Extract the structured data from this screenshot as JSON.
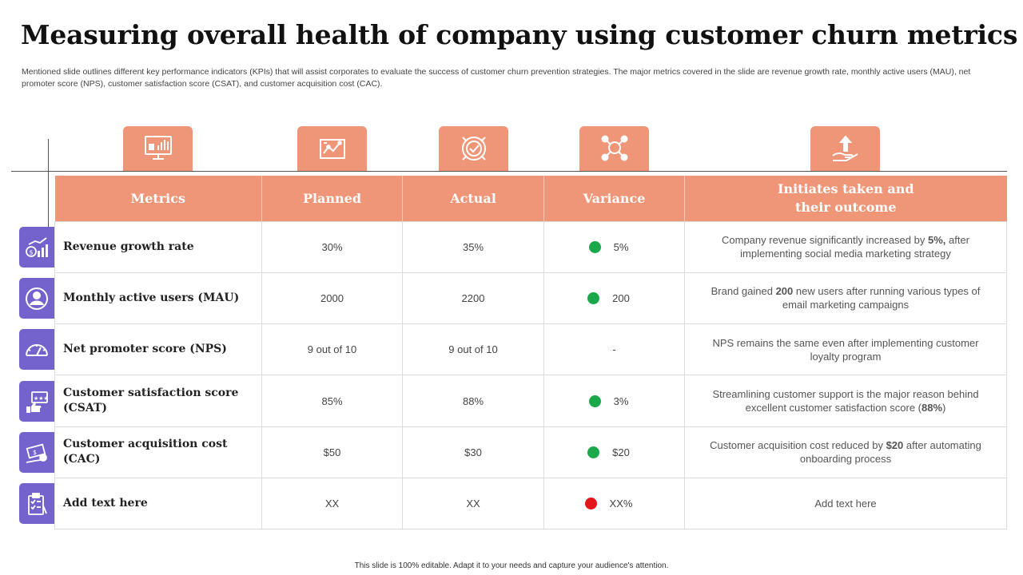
{
  "slide": {
    "title": "Measuring overall health of company using customer churn metrics",
    "subtitle": "Mentioned slide outlines different key performance indicators (KPIs) that will assist corporates to evaluate the success of customer churn prevention strategies. The major metrics covered in the slide are revenue growth rate, monthly active users (MAU), net promoter score (NPS), customer satisfaction score (CSAT), and customer acquisition cost (CAC).",
    "footer": "This slide is 100% editable. Adapt it to your needs and capture your audience's attention."
  },
  "colors": {
    "header": "#ef9678",
    "row_icon": "#7462cd",
    "positive": "#1aa84a",
    "negative": "#e5151c"
  },
  "column_icons": [
    "presentation-chart-icon",
    "map-chart-icon",
    "target-check-icon",
    "molecule-network-icon",
    "hand-growth-icon"
  ],
  "table": {
    "headers": {
      "metrics": "Metrics",
      "planned": "Planned",
      "actual": "Actual",
      "variance": "Variance",
      "outcome_line1": "Initiates taken and",
      "outcome_line2": "their outcome"
    },
    "rows": [
      {
        "icon": "revenue-growth-icon",
        "metric": "Revenue growth rate",
        "planned": "30%",
        "actual": "35%",
        "variance": "5%",
        "status": "green",
        "outcome_pre": "Company revenue significantly increased by ",
        "outcome_bold": "5%,",
        "outcome_post": " after implementing social media marketing strategy"
      },
      {
        "icon": "active-users-icon",
        "metric": "Monthly active users (MAU)",
        "planned": "2000",
        "actual": "2200",
        "variance": "200",
        "status": "green",
        "outcome_pre": "Brand gained ",
        "outcome_bold": "200",
        "outcome_post": " new users after running various types of email marketing campaigns"
      },
      {
        "icon": "gauge-icon",
        "metric": "Net promoter score (NPS)",
        "planned": "9 out of 10",
        "actual": "9 out of 10",
        "variance": "-",
        "status": "none",
        "outcome_pre": "NPS remains the same even after implementing customer loyalty program",
        "outcome_bold": "",
        "outcome_post": ""
      },
      {
        "icon": "satisfaction-rating-icon",
        "metric": "Customer satisfaction score (CSAT)",
        "planned": "85%",
        "actual": "88%",
        "variance": "3%",
        "status": "green",
        "outcome_pre": "Streamlining customer support is the major reason behind excellent customer satisfaction score (",
        "outcome_bold": "88%",
        "outcome_post": ")"
      },
      {
        "icon": "acquisition-cost-icon",
        "metric": "Customer acquisition cost (CAC)",
        "planned": "$50",
        "actual": "$30",
        "variance": "$20",
        "status": "green",
        "outcome_pre": "Customer acquisition cost reduced by ",
        "outcome_bold": "$20",
        "outcome_post": " after automating onboarding process"
      },
      {
        "icon": "clipboard-checklist-icon",
        "metric": "Add text here",
        "planned": "XX",
        "actual": "XX",
        "variance": "XX%",
        "status": "red",
        "outcome_pre": "Add text here",
        "outcome_bold": "",
        "outcome_post": ""
      }
    ]
  }
}
